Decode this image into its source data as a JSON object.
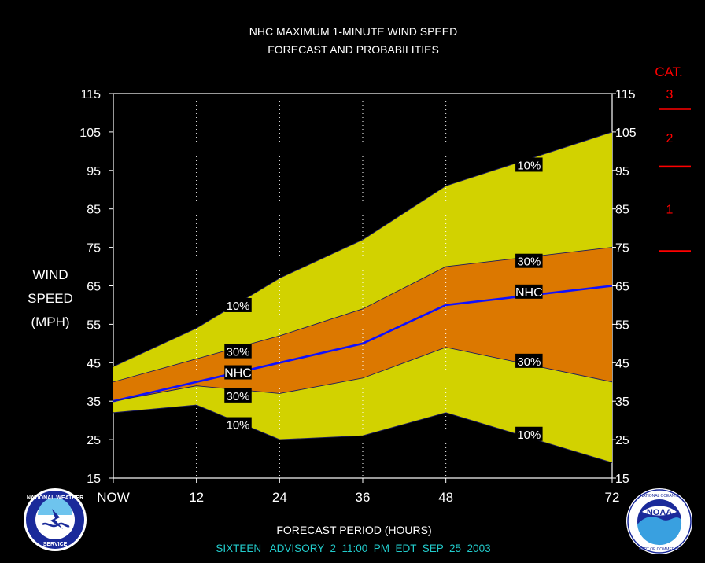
{
  "chart_data": {
    "type": "area",
    "title": "NHC MAXIMUM 1-MINUTE WIND SPEED",
    "subtitle": "FORECAST AND PROBABILITIES",
    "xlabel": "FORECAST PERIOD (HOURS)",
    "ylabel_lines": [
      "WIND",
      "SPEED",
      "(MPH)"
    ],
    "footer": "SIXTEEN   ADVISORY  2  11:00  PM  EDT  SEP  25  2003",
    "x": [
      0,
      12,
      24,
      36,
      48,
      72
    ],
    "xlim": [
      0,
      72
    ],
    "x_tick_labels": [
      "NOW",
      "12",
      "24",
      "36",
      "48",
      "72"
    ],
    "ylim": [
      15,
      115
    ],
    "y_ticks": [
      15,
      25,
      35,
      45,
      55,
      65,
      75,
      85,
      95,
      105,
      115
    ],
    "grid_x": true,
    "series": [
      {
        "name": "10%",
        "role": "upper10",
        "values": [
          44,
          54,
          67,
          77,
          91,
          105
        ]
      },
      {
        "name": "30%",
        "role": "upper30",
        "values": [
          40,
          46,
          52,
          59,
          70,
          75
        ]
      },
      {
        "name": "NHC",
        "role": "nhc",
        "values": [
          35,
          40,
          45,
          50,
          60,
          65
        ]
      },
      {
        "name": "30%",
        "role": "lower30",
        "values": [
          35,
          39,
          37,
          41,
          49,
          40
        ]
      },
      {
        "name": "10%",
        "role": "lower10",
        "values": [
          32,
          34,
          25,
          26,
          32,
          19
        ]
      }
    ],
    "labels": [
      {
        "text": "10%",
        "x": 18,
        "y": 60
      },
      {
        "text": "30%",
        "x": 18,
        "y": 48
      },
      {
        "text": "NHC",
        "x": 18,
        "y": 42.5
      },
      {
        "text": "30%",
        "x": 18,
        "y": 36.5
      },
      {
        "text": "10%",
        "x": 18,
        "y": 29
      },
      {
        "text": "10%",
        "x": 60,
        "y": 96.5
      },
      {
        "text": "30%",
        "x": 60,
        "y": 71.5
      },
      {
        "text": "NHC",
        "x": 60,
        "y": 63.5
      },
      {
        "text": "30%",
        "x": 60,
        "y": 45.5
      },
      {
        "text": "10%",
        "x": 60,
        "y": 26.5
      }
    ],
    "category_header": "CAT.",
    "categories": [
      {
        "label": "1",
        "y": 85
      },
      {
        "label": "2",
        "y": 103.5
      },
      {
        "label": "3",
        "y": 115
      }
    ],
    "category_boundaries": [
      74,
      96,
      111
    ],
    "colors": {
      "outer_band": "#d2d200",
      "inner_band": "#dc7800",
      "nhc_line": "#1010ff",
      "plot_bg": "#000000",
      "text": "#ffffff",
      "category": "#ff0000",
      "footer": "#22cccc"
    }
  },
  "logos": {
    "left": {
      "name": "NATIONAL WEATHER SERVICE"
    },
    "right": {
      "name": "NOAA",
      "ring_text": "NATIONAL OCEANIC AND ATMOSPHERIC ADMINISTRATION · U.S. DEPARTMENT OF COMMERCE"
    }
  }
}
